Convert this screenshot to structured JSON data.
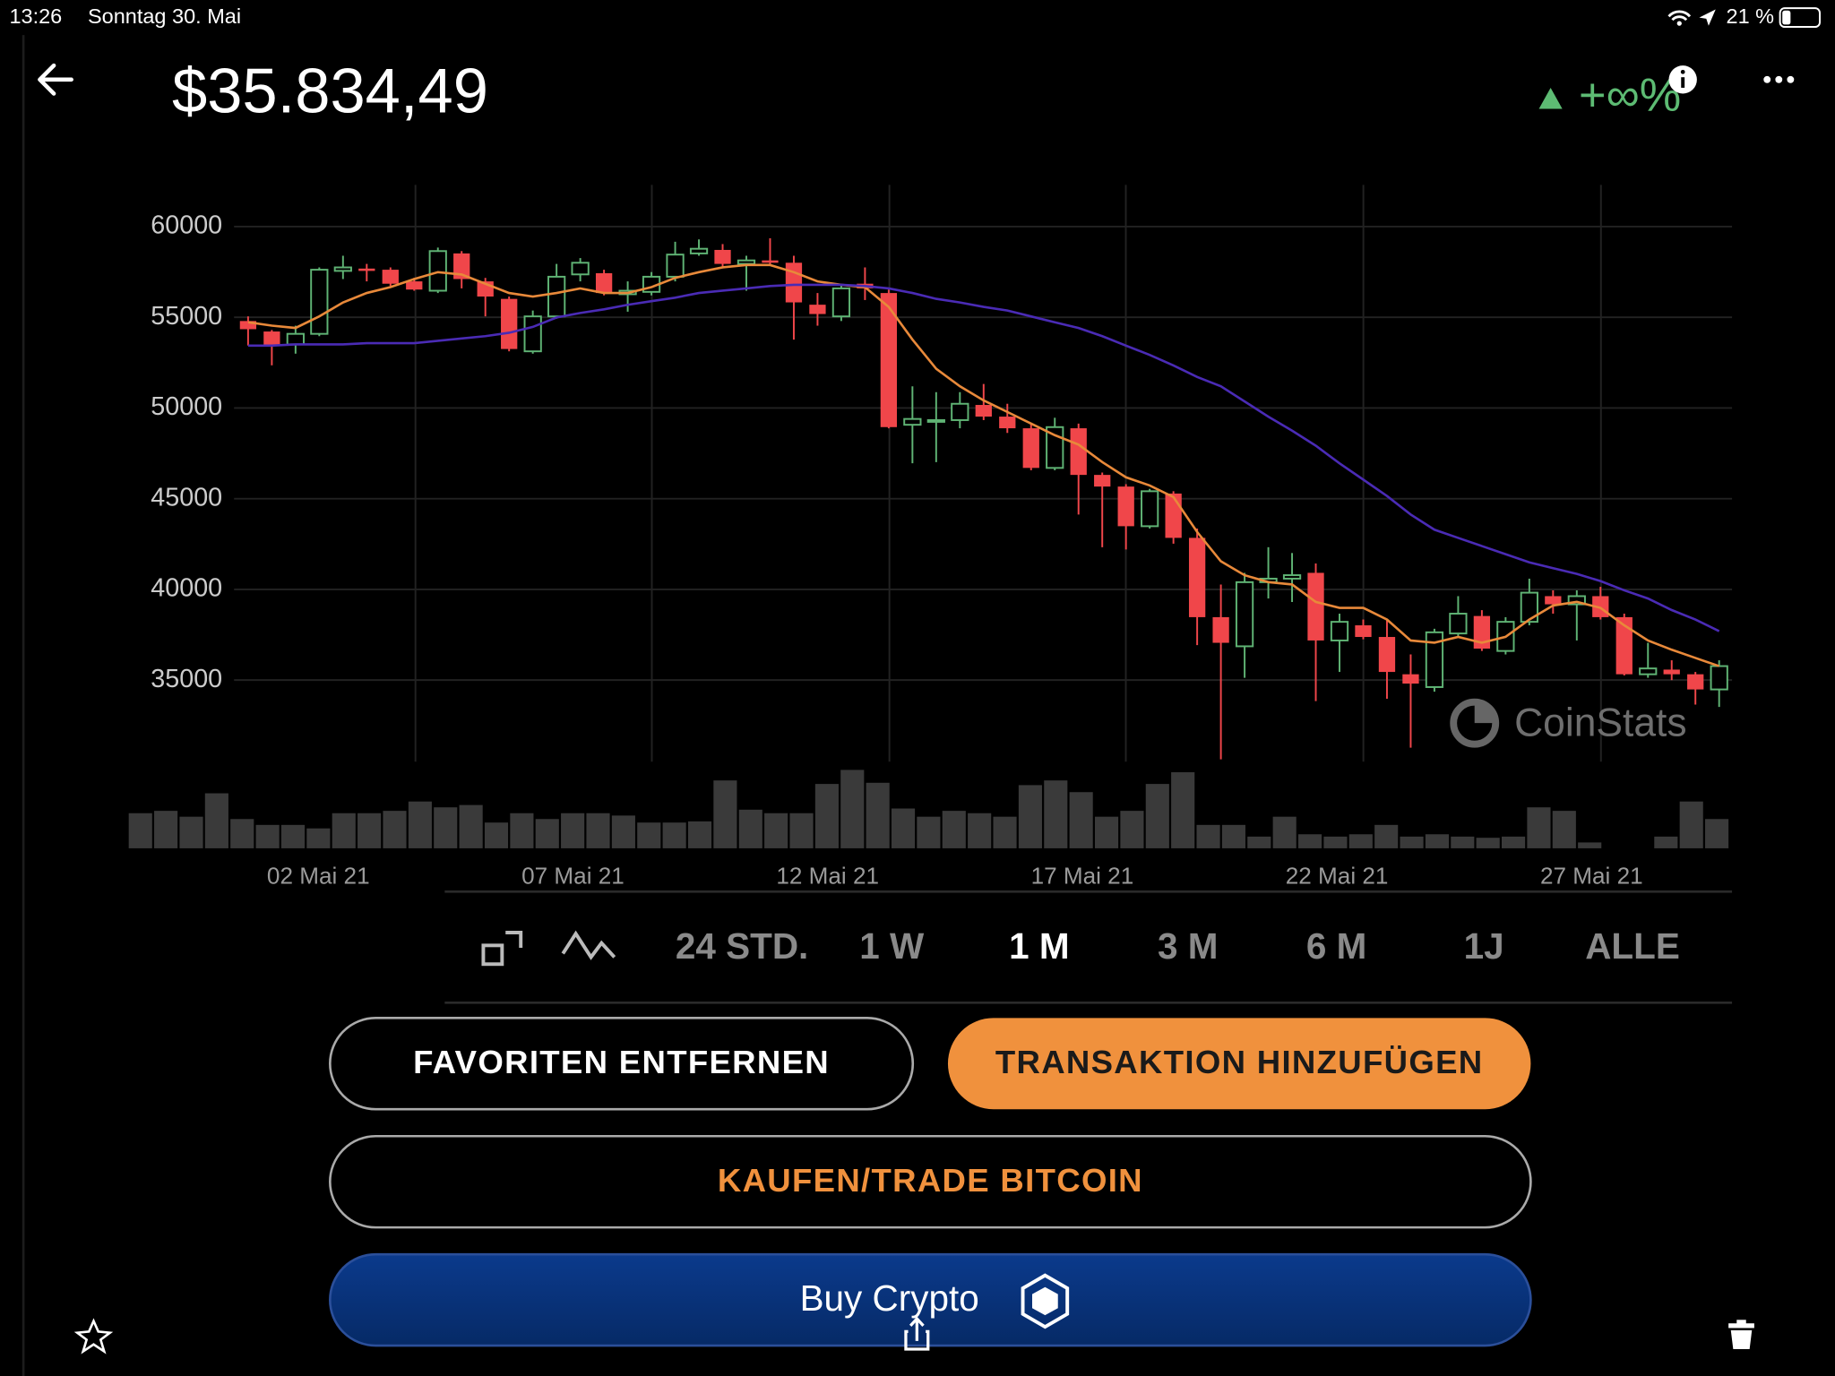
{
  "status_bar": {
    "time": "13:26",
    "date": "Sonntag 30. Mai",
    "battery": "21 %"
  },
  "header": {
    "price": "$35.834,49",
    "change": "+∞%"
  },
  "chart_data": {
    "type": "candlestick",
    "up_color": "#5fb374",
    "down_color": "#f0464a",
    "open": [
      54794,
      54216,
      53509,
      54087,
      57558,
      57686,
      57622,
      56980,
      56465,
      58521,
      56980,
      56015,
      53124,
      55050,
      57365,
      57429,
      56272,
      56401,
      57236,
      58521,
      58714,
      57943,
      58136,
      58007,
      55694,
      55050,
      56851,
      56337,
      49075,
      49268,
      49332,
      50168,
      49525,
      48882,
      46696,
      48882,
      46311,
      45668,
      43483,
      45283,
      42840,
      38469,
      36863,
      40398,
      40591,
      40912,
      37184,
      38019,
      37377,
      35321,
      34614,
      37570,
      38533,
      36606,
      38212,
      39627,
      39177,
      39627,
      38469,
      35321,
      35578,
      35321,
      34485
    ],
    "high": [
      55050,
      54300,
      54537,
      57750,
      58393,
      57943,
      57750,
      57172,
      58843,
      58650,
      57172,
      56144,
      55372,
      57943,
      58264,
      57622,
      56980,
      57493,
      59164,
      59293,
      59036,
      58393,
      59357,
      58393,
      56337,
      56851,
      57750,
      56529,
      51195,
      50874,
      50874,
      51324,
      50232,
      49140,
      49461,
      49140,
      46439,
      45796,
      45540,
      45411,
      43354,
      40269,
      40912,
      42326,
      42005,
      41426,
      38662,
      38340,
      38340,
      36413,
      37827,
      39627,
      38855,
      38469,
      40591,
      39948,
      39948,
      40141,
      38662,
      37055,
      36091,
      35449,
      36091
    ],
    "low": [
      53445,
      52352,
      52995,
      53960,
      57108,
      56980,
      56722,
      56465,
      56337,
      56594,
      55050,
      53124,
      52995,
      54923,
      56980,
      56208,
      55308,
      56208,
      56980,
      58393,
      57750,
      56465,
      57879,
      53766,
      54537,
      54794,
      55951,
      48882,
      46953,
      47018,
      48882,
      49332,
      48625,
      46568,
      46568,
      44126,
      42326,
      42197,
      43354,
      42519,
      36927,
      30629,
      35128,
      39498,
      39305,
      33841,
      35449,
      37248,
      33970,
      31271,
      34357,
      37377,
      36606,
      36413,
      38019,
      38662,
      37184,
      38340,
      35257,
      35128,
      35000,
      33649,
      33520
    ],
    "close": [
      54344,
      53445,
      54087,
      57622,
      57750,
      57558,
      56851,
      56529,
      58650,
      57108,
      56144,
      53252,
      55050,
      57236,
      58007,
      56337,
      56465,
      57236,
      58457,
      58778,
      57943,
      58136,
      58007,
      55822,
      55180,
      56594,
      56594,
      48946,
      49396,
      49332,
      50232,
      49525,
      48882,
      46696,
      48946,
      46311,
      45668,
      43483,
      45411,
      42840,
      38469,
      37055,
      40398,
      40591,
      40784,
      37184,
      38212,
      37377,
      35449,
      34806,
      37634,
      38662,
      36734,
      38212,
      39819,
      39177,
      39627,
      38469,
      35321,
      35642,
      35321,
      34485,
      35771
    ],
    "moving_averages": [
      {
        "color": "#e8893a",
        "values": [
          54730,
          54540,
          54410,
          55050,
          55820,
          56340,
          56660,
          57110,
          57490,
          57360,
          56850,
          56340,
          56140,
          56340,
          56590,
          56340,
          56340,
          56660,
          57170,
          57490,
          57750,
          57880,
          57880,
          57490,
          56980,
          56790,
          56660,
          55570,
          53770,
          52160,
          51200,
          50420,
          49780,
          49140,
          48500,
          47980,
          47020,
          46180,
          45730,
          45090,
          43160,
          41550,
          40780,
          40400,
          40270,
          39310,
          38980,
          38980,
          38340,
          37180,
          37060,
          37380,
          37060,
          37380,
          38340,
          39110,
          39310,
          38980,
          38020,
          37180,
          36670,
          36220,
          35770
        ]
      },
      {
        "color": "#4a2bb5",
        "values": [
          53440,
          53440,
          53510,
          53510,
          53510,
          53570,
          53570,
          53570,
          53700,
          53830,
          53960,
          54150,
          54470,
          54990,
          55240,
          55440,
          55690,
          55890,
          56080,
          56340,
          56470,
          56590,
          56720,
          56790,
          56790,
          56790,
          56720,
          56590,
          56340,
          56020,
          55820,
          55570,
          55370,
          55050,
          54730,
          54410,
          53960,
          53440,
          52930,
          52350,
          51710,
          51200,
          50360,
          49520,
          48750,
          47920,
          46950,
          46050,
          45150,
          44130,
          43290,
          42840,
          42390,
          41940,
          41490,
          41170,
          40850,
          40460,
          39950,
          39500,
          38860,
          38340,
          37700
        ]
      }
    ],
    "volume": {
      "color": "#3a3a3a",
      "values": [
        30,
        32,
        27,
        47,
        25,
        20,
        20,
        17,
        30,
        30,
        32,
        40,
        35,
        37,
        22,
        30,
        25,
        30,
        30,
        28,
        22,
        22,
        23,
        58,
        33,
        30,
        30,
        55,
        67,
        56,
        34,
        27,
        32,
        30,
        27,
        54,
        58,
        48,
        27,
        32,
        55,
        65,
        20,
        20,
        10,
        27,
        12,
        10,
        12,
        20,
        10,
        12,
        10,
        9,
        10,
        35,
        32,
        5,
        0,
        0,
        10,
        40,
        25
      ]
    },
    "ylim": [
      30500,
      62300
    ],
    "yticks": [
      35000,
      40000,
      45000,
      50000,
      55000,
      60000
    ],
    "grid": true,
    "xtick_labels": [
      "02 Mai 21",
      "07 Mai 21",
      "12 Mai 21",
      "17 Mai 21",
      "22 Mai 21",
      "27 Mai 21"
    ],
    "watermark": "CoinStats"
  },
  "time_ranges": {
    "labels": [
      "24 STD.",
      "1 W",
      "1 M",
      "3 M",
      "6 M",
      "1J",
      "ALLE"
    ],
    "selected": 2
  },
  "buttons": {
    "remove_favorite": "FAVORITEN ENTFERNEN",
    "add_transaction": "TRANSAKTION HINZUFÜGEN",
    "trade": "KAUFEN/TRADE BITCOIN",
    "buy": "Buy Crypto"
  }
}
